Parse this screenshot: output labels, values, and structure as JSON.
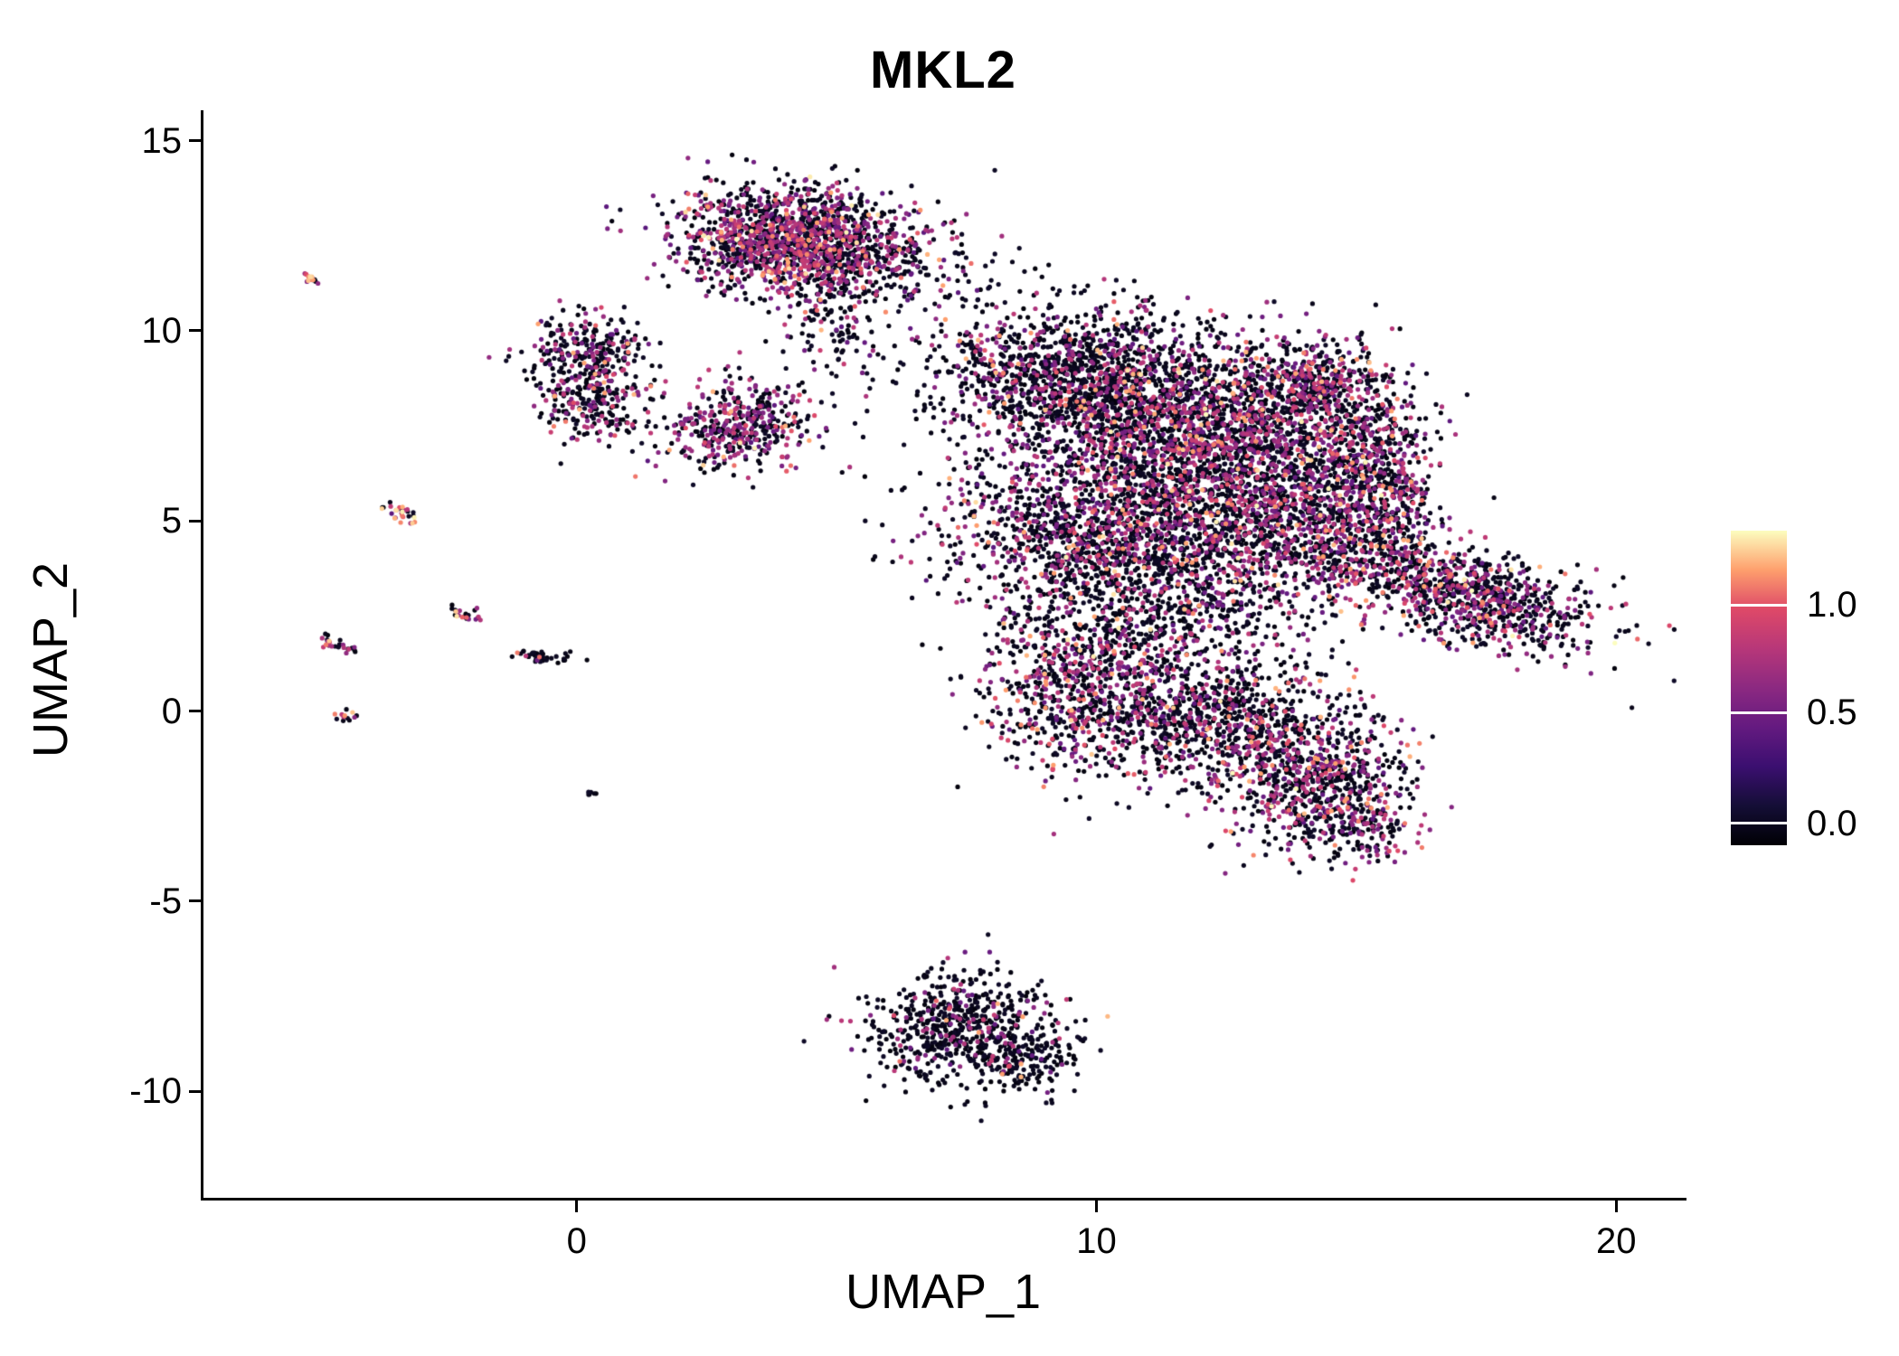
{
  "title": "MKL2",
  "colors": {
    "background": "#ffffff",
    "axis": "#000000",
    "text": "#000000"
  },
  "chart_data": {
    "type": "scatter",
    "title": "MKL2",
    "xlabel": "UMAP_1",
    "ylabel": "UMAP_2",
    "x_ticks": [
      0,
      10,
      20
    ],
    "y_ticks": [
      15,
      10,
      5,
      0,
      -5,
      -10
    ],
    "xlim": [
      -7.2,
      21.3
    ],
    "ylim": [
      -12.8,
      15.8
    ],
    "grid": false,
    "legend_position": "right",
    "point_color_scale": {
      "name": "magma",
      "stops": [
        "#000004",
        "#140e36",
        "#3b0f70",
        "#641a80",
        "#8c2981",
        "#b73779",
        "#de4968",
        "#fe9f6d",
        "#fcfdbf"
      ],
      "vmin": 0.0,
      "vmax": 1.32
    },
    "legend": {
      "ticks": [
        {
          "label": "1.0",
          "t": 0.236
        },
        {
          "label": "0.5",
          "t": 0.578
        },
        {
          "label": "0.0",
          "t": 0.931
        }
      ]
    },
    "value_buckets": {
      "black": [
        0.02,
        0.12
      ],
      "mid": [
        0.45,
        0.9
      ],
      "high": [
        0.95,
        1.2
      ],
      "peak": [
        1.2,
        1.32
      ]
    },
    "clusters": [
      {
        "name": "top-main",
        "cx": 4.25,
        "cy": 12.35,
        "sx": 1.15,
        "sy": 0.7,
        "rot": -8,
        "n": 1600,
        "mix": [
          0.54,
          0.39,
          0.06,
          0.01
        ]
      },
      {
        "name": "top-trail",
        "cx": 4.9,
        "cy": 10.2,
        "sx": 0.5,
        "sy": 0.9,
        "rot": 0,
        "n": 120,
        "mix": [
          0.85,
          0.13,
          0.02,
          0
        ]
      },
      {
        "name": "top-right-sparse",
        "cx": 6.6,
        "cy": 11.3,
        "sx": 0.95,
        "sy": 0.75,
        "rot": 0,
        "n": 90,
        "mix": [
          0.8,
          0.18,
          0.02,
          0
        ]
      },
      {
        "name": "left-mid-upper",
        "cx": 0.25,
        "cy": 9.4,
        "sx": 0.6,
        "sy": 0.5,
        "rot": 0,
        "n": 280,
        "mix": [
          0.7,
          0.26,
          0.04,
          0
        ]
      },
      {
        "name": "left-mid-lower",
        "cx": 0.35,
        "cy": 8.0,
        "sx": 0.55,
        "sy": 0.45,
        "rot": 0,
        "n": 210,
        "mix": [
          0.7,
          0.26,
          0.04,
          0
        ]
      },
      {
        "name": "mid-small",
        "cx": 3.1,
        "cy": 7.5,
        "sx": 0.75,
        "sy": 0.55,
        "rot": 15,
        "n": 430,
        "mix": [
          0.52,
          0.42,
          0.05,
          0.01
        ]
      },
      {
        "name": "mass-nw",
        "cx": 9.6,
        "cy": 8.7,
        "sx": 1.35,
        "sy": 0.95,
        "rot": 0,
        "n": 1400,
        "mix": [
          0.72,
          0.24,
          0.035,
          0.005
        ]
      },
      {
        "name": "mass-ne",
        "cx": 12.3,
        "cy": 7.3,
        "sx": 1.5,
        "sy": 1.2,
        "rot": 0,
        "n": 1900,
        "mix": [
          0.62,
          0.31,
          0.06,
          0.01
        ]
      },
      {
        "name": "mass-top-bump",
        "cx": 14.3,
        "cy": 8.6,
        "sx": 0.65,
        "sy": 0.55,
        "rot": -20,
        "n": 300,
        "mix": [
          0.6,
          0.33,
          0.06,
          0.01
        ]
      },
      {
        "name": "mass-sw",
        "cx": 10.3,
        "cy": 4.7,
        "sx": 1.55,
        "sy": 1.2,
        "rot": 0,
        "n": 1700,
        "mix": [
          0.68,
          0.27,
          0.045,
          0.005
        ]
      },
      {
        "name": "mass-se",
        "cx": 13.8,
        "cy": 4.8,
        "sx": 1.1,
        "sy": 1.1,
        "rot": 0,
        "n": 900,
        "mix": [
          0.6,
          0.33,
          0.06,
          0.01
        ]
      },
      {
        "name": "mass-east-arc",
        "cx": 15.3,
        "cy": 6.2,
        "sx": 0.65,
        "sy": 1.4,
        "rot": 12,
        "n": 700,
        "mix": [
          0.58,
          0.34,
          0.07,
          0.01
        ]
      },
      {
        "name": "mass-bridge",
        "cx": 11.8,
        "cy": 2.4,
        "sx": 1.2,
        "sy": 0.9,
        "rot": 0,
        "n": 300,
        "mix": [
          0.8,
          0.17,
          0.03,
          0
        ]
      },
      {
        "name": "lower-west",
        "cx": 9.9,
        "cy": 0.6,
        "sx": 1.05,
        "sy": 1.15,
        "rot": 0,
        "n": 850,
        "mix": [
          0.58,
          0.34,
          0.07,
          0.01
        ]
      },
      {
        "name": "lower-mid",
        "cx": 12.6,
        "cy": -0.3,
        "sx": 1.15,
        "sy": 0.85,
        "rot": 0,
        "n": 800,
        "mix": [
          0.7,
          0.26,
          0.04,
          0
        ]
      },
      {
        "name": "lower-east",
        "cx": 14.3,
        "cy": -1.9,
        "sx": 0.9,
        "sy": 0.95,
        "rot": -25,
        "n": 650,
        "mix": [
          0.6,
          0.33,
          0.06,
          0.01
        ]
      },
      {
        "name": "lower-east-tail",
        "cx": 15.2,
        "cy": -3.0,
        "sx": 0.45,
        "sy": 0.45,
        "rot": -30,
        "n": 120,
        "mix": [
          0.62,
          0.32,
          0.05,
          0.01
        ]
      },
      {
        "name": "right-arm",
        "cx": 17.3,
        "cy": 3.0,
        "sx": 1.25,
        "sy": 0.58,
        "rot": -22,
        "n": 900,
        "mix": [
          0.64,
          0.3,
          0.05,
          0.01
        ]
      },
      {
        "name": "bottom-main",
        "cx": 7.4,
        "cy": -8.4,
        "sx": 0.9,
        "sy": 0.72,
        "rot": -12,
        "n": 650,
        "mix": [
          0.84,
          0.14,
          0.02,
          0
        ]
      },
      {
        "name": "bottom-tail",
        "cx": 8.8,
        "cy": -9.2,
        "sx": 0.4,
        "sy": 0.45,
        "rot": -30,
        "n": 120,
        "mix": [
          0.85,
          0.13,
          0.02,
          0
        ]
      },
      {
        "name": "sat-1",
        "cx": -5.1,
        "cy": 11.35,
        "sx": 0.1,
        "sy": 0.08,
        "rot": -30,
        "n": 14,
        "mix": [
          0.3,
          0.4,
          0.15,
          0.15
        ]
      },
      {
        "name": "sat-2",
        "cx": -3.35,
        "cy": 5.2,
        "sx": 0.22,
        "sy": 0.1,
        "rot": -35,
        "n": 28,
        "mix": [
          0.2,
          0.35,
          0.25,
          0.2
        ]
      },
      {
        "name": "sat-3",
        "cx": -2.15,
        "cy": 2.5,
        "sx": 0.16,
        "sy": 0.09,
        "rot": -30,
        "n": 22,
        "mix": [
          0.35,
          0.4,
          0.15,
          0.1
        ]
      },
      {
        "name": "sat-4",
        "cx": -4.65,
        "cy": 1.75,
        "sx": 0.2,
        "sy": 0.09,
        "rot": -35,
        "n": 26,
        "mix": [
          0.5,
          0.35,
          0.1,
          0.05
        ]
      },
      {
        "name": "sat-5",
        "cx": -0.65,
        "cy": 1.45,
        "sx": 0.28,
        "sy": 0.08,
        "rot": -5,
        "n": 40,
        "mix": [
          0.88,
          0.1,
          0.02,
          0
        ]
      },
      {
        "name": "sat-6",
        "cx": -4.45,
        "cy": -0.15,
        "sx": 0.1,
        "sy": 0.08,
        "rot": 0,
        "n": 12,
        "mix": [
          0.4,
          0.25,
          0.2,
          0.15
        ]
      },
      {
        "name": "sat-7",
        "cx": 0.3,
        "cy": -2.15,
        "sx": 0.07,
        "sy": 0.05,
        "rot": 0,
        "n": 6,
        "mix": [
          1,
          0,
          0,
          0
        ]
      }
    ]
  }
}
